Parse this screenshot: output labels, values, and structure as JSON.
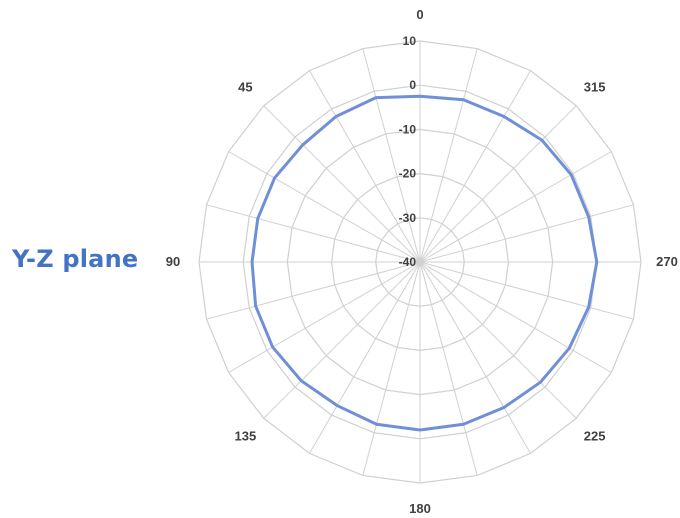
{
  "side_label": "Y-Z plane",
  "colors": {
    "series": "#6f8fd6",
    "grid": "#d0d0d0",
    "label_accent": "#4472c4"
  },
  "chart_data": {
    "type": "radar",
    "title": "",
    "angle_categories": [
      "0",
      "15",
      "30",
      "45",
      "60",
      "75",
      "90",
      "105",
      "120",
      "135",
      "150",
      "165",
      "180",
      "195",
      "210",
      "225",
      "240",
      "255",
      "270",
      "285",
      "300",
      "315",
      "330",
      "345"
    ],
    "angle_labels_shown": [
      "0",
      "45",
      "90",
      "135",
      "180",
      "225",
      "270",
      "315"
    ],
    "r_ticks": [
      10,
      0,
      -10,
      -20,
      -30,
      -40
    ],
    "r_range": [
      -40,
      10
    ],
    "direction": "counterclockwise",
    "grid": true,
    "series": [
      {
        "values": [
          -2.5,
          -1.5,
          -2,
          -2.5,
          -2,
          -2,
          -2,
          -1.5,
          -1.5,
          -2,
          -2.5,
          -2,
          -2,
          -2,
          -2,
          -1.5,
          -1,
          -0.5,
          0,
          -0.5,
          -0.5,
          -1,
          -2,
          -2
        ]
      }
    ]
  }
}
